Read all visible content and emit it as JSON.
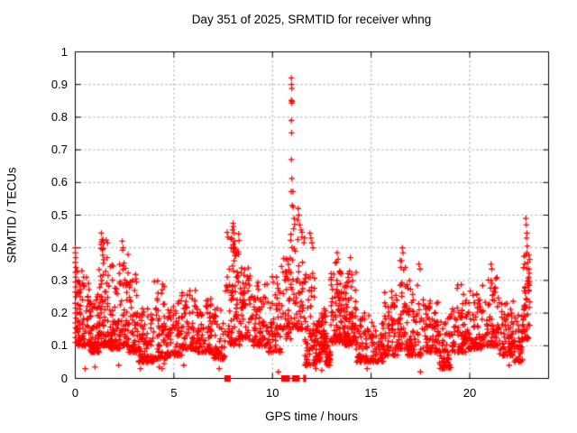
{
  "page": {
    "background": "#ffffff"
  },
  "chart_data": {
    "type": "scatter",
    "title": "Day 351 of 2025, SRMTID for receiver whng",
    "xlabel": "GPS time / hours",
    "ylabel": "SRMTID / TECUs",
    "xlim": [
      0,
      24
    ],
    "ylim": [
      0,
      1
    ],
    "xticks": {
      "values": [
        0,
        5,
        10,
        15,
        20
      ],
      "labels": [
        "0",
        "5",
        "10",
        "15",
        "20"
      ]
    },
    "yticks": {
      "values": [
        0,
        0.1,
        0.2,
        0.3,
        0.4,
        0.5,
        0.6,
        0.7,
        0.8,
        0.9,
        1
      ],
      "labels": [
        "0",
        "0.1",
        "0.2",
        "0.3",
        "0.4",
        "0.5",
        "0.6",
        "0.7",
        "0.8",
        "0.9",
        "1"
      ]
    },
    "grid": true,
    "legend": false,
    "marker": "plus",
    "colors": {
      "points": "#ff0000",
      "grid": "#9a9a9a",
      "axis": "#000000",
      "text": "#000000"
    },
    "seed": 1351,
    "density_segments": [
      [
        0.05,
        0.7,
        85,
        0.1,
        0.33,
        2.2
      ],
      [
        0.7,
        1.2,
        80,
        0.08,
        0.26,
        2.0
      ],
      [
        1.2,
        1.75,
        85,
        0.1,
        0.43,
        2.4
      ],
      [
        1.75,
        2.3,
        80,
        0.09,
        0.35,
        2.2
      ],
      [
        2.3,
        2.7,
        55,
        0.1,
        0.4,
        2.4
      ],
      [
        2.7,
        3.2,
        60,
        0.08,
        0.33,
        2.3
      ],
      [
        3.2,
        4.0,
        85,
        0.05,
        0.22,
        2.0
      ],
      [
        4.0,
        4.65,
        65,
        0.06,
        0.3,
        2.3
      ],
      [
        4.65,
        5.4,
        75,
        0.07,
        0.24,
        2.1
      ],
      [
        5.4,
        6.2,
        75,
        0.09,
        0.3,
        2.2
      ],
      [
        6.2,
        7.0,
        75,
        0.08,
        0.25,
        2.1
      ],
      [
        7.0,
        7.6,
        55,
        0.06,
        0.22,
        2.0
      ],
      [
        7.6,
        8.35,
        85,
        0.1,
        0.46,
        1.7
      ],
      [
        8.35,
        8.9,
        55,
        0.12,
        0.34,
        1.9
      ],
      [
        8.9,
        9.7,
        75,
        0.1,
        0.3,
        2.0
      ],
      [
        9.7,
        10.45,
        65,
        0.08,
        0.32,
        2.1
      ],
      [
        10.45,
        10.92,
        45,
        0.12,
        0.38,
        1.8
      ],
      [
        10.92,
        11.2,
        22,
        0.15,
        0.45,
        1.6
      ],
      [
        11.2,
        11.65,
        40,
        0.15,
        0.47,
        1.8
      ],
      [
        11.65,
        12.15,
        60,
        0.04,
        0.33,
        2.2
      ],
      [
        12.15,
        12.45,
        45,
        0.05,
        0.18,
        1.9
      ],
      [
        12.45,
        12.7,
        40,
        0.08,
        0.22,
        2.0
      ],
      [
        12.7,
        12.95,
        40,
        0.04,
        0.14,
        1.8
      ],
      [
        12.95,
        13.65,
        95,
        0.11,
        0.36,
        1.9
      ],
      [
        13.65,
        14.25,
        80,
        0.1,
        0.33,
        1.9
      ],
      [
        14.25,
        15.05,
        65,
        0.05,
        0.2,
        1.9
      ],
      [
        15.05,
        15.65,
        55,
        0.05,
        0.17,
        1.8
      ],
      [
        15.65,
        16.35,
        70,
        0.07,
        0.27,
        2.0
      ],
      [
        16.35,
        16.85,
        55,
        0.09,
        0.37,
        2.2
      ],
      [
        16.85,
        17.65,
        70,
        0.07,
        0.32,
        2.2
      ],
      [
        17.65,
        18.45,
        75,
        0.08,
        0.24,
        2.0
      ],
      [
        18.45,
        19.05,
        60,
        0.03,
        0.19,
        1.9
      ],
      [
        19.05,
        19.85,
        75,
        0.08,
        0.3,
        2.2
      ],
      [
        19.85,
        20.65,
        75,
        0.09,
        0.27,
        2.1
      ],
      [
        20.65,
        21.45,
        75,
        0.1,
        0.31,
        2.1
      ],
      [
        21.45,
        22.25,
        75,
        0.07,
        0.25,
        2.1
      ],
      [
        22.25,
        22.72,
        45,
        0.05,
        0.2,
        1.9
      ],
      [
        22.72,
        23.05,
        45,
        0.12,
        0.38,
        1.5
      ]
    ],
    "outliers": [
      [
        0,
        0.4
      ],
      [
        0,
        0.385
      ],
      [
        0.02,
        0.37
      ],
      [
        0,
        0.355
      ],
      [
        0.03,
        0.34
      ],
      [
        0,
        0.325
      ],
      [
        0.02,
        0.31
      ],
      [
        0,
        0.295
      ],
      [
        0.02,
        0.28
      ],
      [
        0,
        0.265
      ],
      [
        0.03,
        0.25
      ],
      [
        0,
        0.23
      ],
      [
        0.02,
        0.215
      ],
      [
        0,
        0.2
      ],
      [
        0.03,
        0.185
      ],
      [
        0,
        0.17
      ],
      [
        0.02,
        0.155
      ],
      [
        0,
        0.14
      ],
      [
        0.02,
        0.125
      ],
      [
        0,
        0.11
      ],
      [
        1.32,
        0.445
      ],
      [
        1.36,
        0.425
      ],
      [
        1.3,
        0.41
      ],
      [
        1.38,
        0.395
      ],
      [
        2.38,
        0.42
      ],
      [
        2.42,
        0.4
      ],
      [
        8.0,
        0.475
      ],
      [
        8.02,
        0.465
      ],
      [
        7.97,
        0.455
      ],
      [
        8.05,
        0.445
      ],
      [
        7.93,
        0.43
      ],
      [
        8.08,
        0.42
      ],
      [
        8.0,
        0.41
      ],
      [
        7.9,
        0.4
      ],
      [
        8.12,
        0.395
      ],
      [
        10.96,
        0.92
      ],
      [
        10.97,
        0.9
      ],
      [
        10.98,
        0.888
      ],
      [
        10.96,
        0.852
      ],
      [
        10.99,
        0.848
      ],
      [
        10.97,
        0.843
      ],
      [
        10.96,
        0.79
      ],
      [
        10.97,
        0.752
      ],
      [
        10.96,
        0.67
      ],
      [
        10.98,
        0.612
      ],
      [
        10.95,
        0.572
      ],
      [
        11.04,
        0.572
      ],
      [
        11.0,
        0.53
      ],
      [
        11.05,
        0.525
      ],
      [
        11.1,
        0.49
      ],
      [
        11.13,
        0.472
      ],
      [
        11.07,
        0.458
      ],
      [
        11.3,
        0.52
      ],
      [
        11.33,
        0.5
      ],
      [
        11.28,
        0.485
      ],
      [
        11.38,
        0.47
      ],
      [
        11.45,
        0.455
      ],
      [
        11.9,
        0.445
      ],
      [
        11.95,
        0.43
      ],
      [
        12.0,
        0.415
      ],
      [
        12.05,
        0.4
      ],
      [
        13.28,
        0.385
      ],
      [
        13.33,
        0.365
      ],
      [
        13.95,
        0.37
      ],
      [
        16.58,
        0.4
      ],
      [
        16.62,
        0.385
      ],
      [
        16.55,
        0.36
      ],
      [
        17.42,
        0.35
      ],
      [
        17.48,
        0.335
      ],
      [
        21.08,
        0.35
      ],
      [
        21.12,
        0.335
      ],
      [
        22.85,
        0.49
      ],
      [
        22.87,
        0.47
      ],
      [
        22.9,
        0.445
      ],
      [
        22.88,
        0.43
      ],
      [
        22.92,
        0.405
      ],
      [
        22.9,
        0.385
      ],
      [
        22.95,
        0.355
      ],
      [
        23.0,
        0.335
      ],
      [
        22.97,
        0.305
      ],
      [
        23.02,
        0.285
      ],
      [
        22.99,
        0.27
      ],
      [
        0.5,
        0.03
      ],
      [
        1.0,
        0.035
      ],
      [
        2.2,
        0.04
      ],
      [
        3.3,
        0.03
      ],
      [
        4.25,
        0.035
      ],
      [
        4.4,
        0.03
      ],
      [
        4.5,
        0.045
      ],
      [
        5.5,
        0.04
      ],
      [
        7.3,
        0.03
      ],
      [
        10.3,
        0.02
      ],
      [
        12.2,
        0.03
      ],
      [
        12.5,
        0.025
      ],
      [
        14.8,
        0.03
      ],
      [
        17.5,
        0.02
      ],
      [
        18.6,
        0.03
      ],
      [
        22.0,
        0.04
      ]
    ],
    "zero_square_x": [
      7.72,
      10.6,
      10.72,
      11.15,
      11.22
    ],
    "zero_bar_x": [
      11.6,
      11.66
    ]
  }
}
